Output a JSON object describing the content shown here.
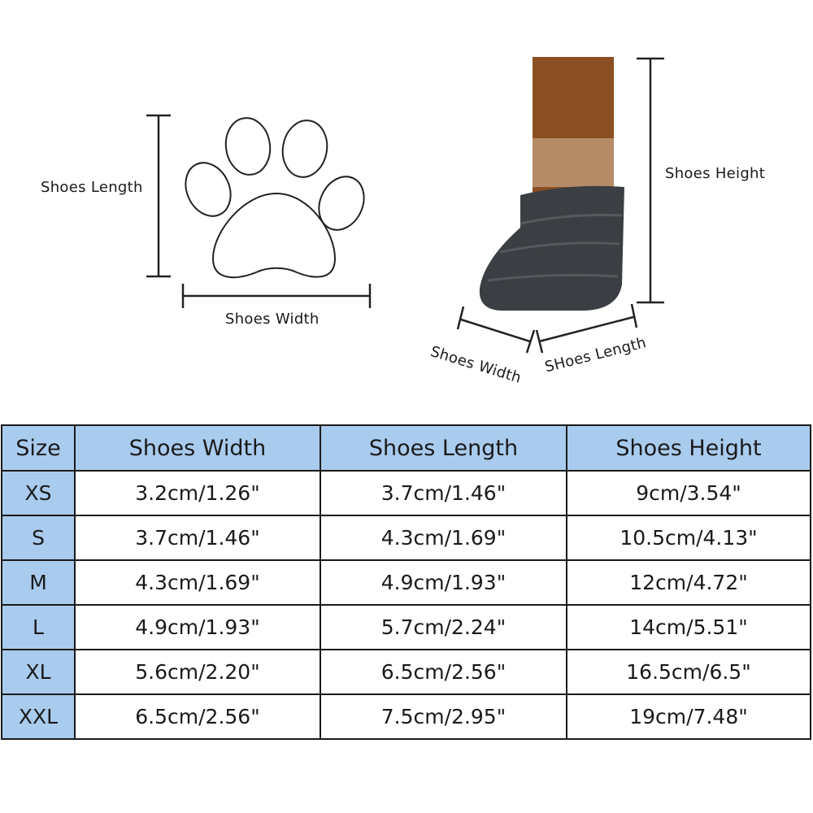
{
  "diagram": {
    "paw_labels": {
      "length": "Shoes Length",
      "width": "Shoes Width"
    },
    "shoe_labels": {
      "height": "Shoes Height",
      "width": "Shoes Width",
      "length": "SHoes Length"
    }
  },
  "colors": {
    "header_bg": "#a9cbee",
    "border": "#1a1a1a",
    "sock": "#8a4f22",
    "sole": "#3b3e42"
  },
  "table": {
    "headers": [
      "Size",
      "Shoes Width",
      "Shoes Length",
      "Shoes Height"
    ],
    "rows": [
      [
        "XS",
        "3.2cm/1.26\"",
        "3.7cm/1.46\"",
        "9cm/3.54\""
      ],
      [
        "S",
        "3.7cm/1.46\"",
        "4.3cm/1.69\"",
        "10.5cm/4.13\""
      ],
      [
        "M",
        "4.3cm/1.69\"",
        "4.9cm/1.93\"",
        "12cm/4.72\""
      ],
      [
        "L",
        "4.9cm/1.93\"",
        "5.7cm/2.24\"",
        "14cm/5.51\""
      ],
      [
        "XL",
        "5.6cm/2.20\"",
        "6.5cm/2.56\"",
        "16.5cm/6.5\""
      ],
      [
        "XXL",
        "6.5cm/2.56\"",
        "7.5cm/2.95\"",
        "19cm/7.48\""
      ]
    ]
  }
}
